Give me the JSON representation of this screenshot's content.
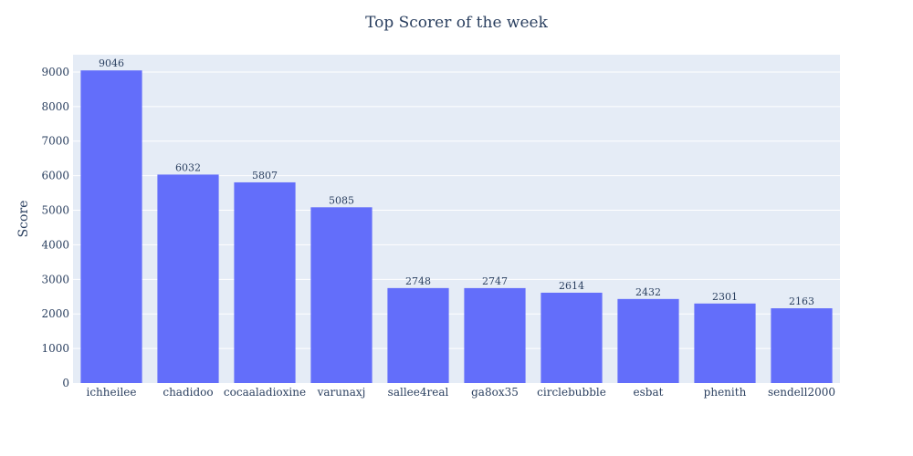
{
  "chart_data": {
    "type": "bar",
    "title": "Top Scorer of the week",
    "xlabel": "",
    "ylabel": "Score",
    "ylim": [
      0,
      9500
    ],
    "yticks": [
      0,
      1000,
      2000,
      3000,
      4000,
      5000,
      6000,
      7000,
      8000,
      9000
    ],
    "grid": true,
    "categories": [
      "ichheilee",
      "chadidoo",
      "cocaaladioxine",
      "varunaxj",
      "sallee4real",
      "ga8ox35",
      "circlebubble",
      "esbat",
      "phenith",
      "sendell2000"
    ],
    "values": [
      9046,
      6032,
      5807,
      5085,
      2748,
      2747,
      2614,
      2432,
      2301,
      2163
    ],
    "colors": {
      "bar": "#636efa",
      "plot_bg": "#e5ecf6",
      "grid": "#ffffff",
      "text": "#2a3f5f"
    }
  }
}
